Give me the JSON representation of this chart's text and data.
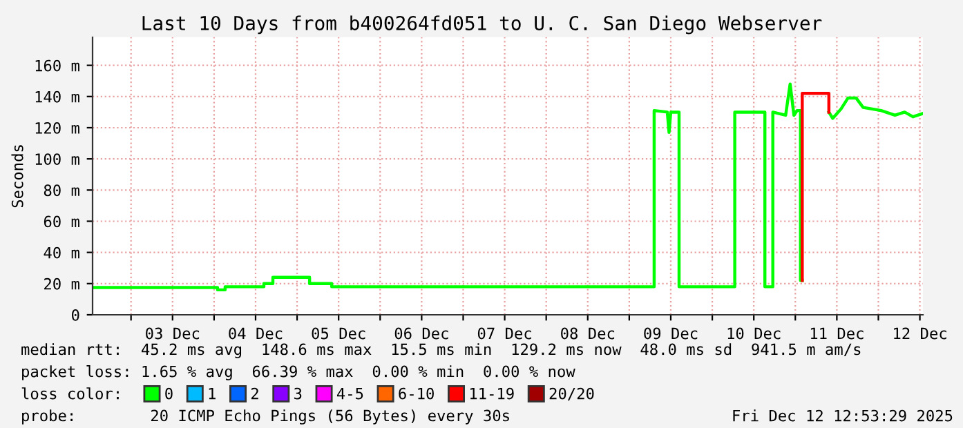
{
  "chart_data": {
    "type": "line",
    "title": "Last 10 Days from b400264fd051 to U. C. San Diego Webserver",
    "ylabel": "Seconds",
    "xlim": [
      "2025-12-02T12:53",
      "2025-12-12T12:53"
    ],
    "xticks": [
      {
        "value": "2025-12-03T00:00",
        "label": null
      },
      {
        "value": "2025-12-03T12:00",
        "label": "03 Dec"
      },
      {
        "value": "2025-12-04T00:00",
        "label": null
      },
      {
        "value": "2025-12-04T12:00",
        "label": "04 Dec"
      },
      {
        "value": "2025-12-05T00:00",
        "label": null
      },
      {
        "value": "2025-12-05T12:00",
        "label": "05 Dec"
      },
      {
        "value": "2025-12-06T00:00",
        "label": null
      },
      {
        "value": "2025-12-06T12:00",
        "label": "06 Dec"
      },
      {
        "value": "2025-12-07T00:00",
        "label": null
      },
      {
        "value": "2025-12-07T12:00",
        "label": "07 Dec"
      },
      {
        "value": "2025-12-08T00:00",
        "label": null
      },
      {
        "value": "2025-12-08T12:00",
        "label": "08 Dec"
      },
      {
        "value": "2025-12-09T00:00",
        "label": null
      },
      {
        "value": "2025-12-09T12:00",
        "label": "09 Dec"
      },
      {
        "value": "2025-12-10T00:00",
        "label": null
      },
      {
        "value": "2025-12-10T12:00",
        "label": "10 Dec"
      },
      {
        "value": "2025-12-11T00:00",
        "label": null
      },
      {
        "value": "2025-12-11T12:00",
        "label": "11 Dec"
      },
      {
        "value": "2025-12-12T00:00",
        "label": null
      },
      {
        "value": "2025-12-12T12:00",
        "label": "12 Dec"
      }
    ],
    "ylim": [
      0,
      178
    ],
    "yticks": [
      0,
      {
        "value": 20,
        "label": "20 m"
      },
      {
        "value": 40,
        "label": "40 m"
      },
      {
        "value": 60,
        "label": "60 m"
      },
      {
        "value": 80,
        "label": "80 m"
      },
      {
        "value": 100,
        "label": "100 m"
      },
      {
        "value": 120,
        "label": "120 m"
      },
      {
        "value": 140,
        "label": "140 m"
      },
      {
        "value": 160,
        "label": "160 m"
      }
    ],
    "grid": true,
    "legend": "bottom",
    "series": [
      {
        "name": "0",
        "color": "#00ff00",
        "x": [
          "2025-12-02T12:53",
          "2025-12-04T01:00",
          "2025-12-04T01:00",
          "2025-12-04T03:12",
          "2025-12-04T03:12",
          "2025-12-04T14:24",
          "2025-12-04T14:24",
          "2025-12-04T17:00",
          "2025-12-04T17:00",
          "2025-12-05T03:36",
          "2025-12-05T03:36",
          "2025-12-05T10:00",
          "2025-12-05T10:00",
          "2025-12-09T07:12",
          "2025-12-09T07:12",
          "2025-12-09T11:00",
          "2025-12-09T11:30",
          "2025-12-09T12:00",
          "2025-12-09T12:48",
          "2025-12-09T14:24",
          "2025-12-09T14:24",
          "2025-12-10T06:30",
          "2025-12-10T06:30",
          "2025-12-10T15:12",
          "2025-12-10T15:12",
          "2025-12-10T17:30",
          "2025-12-10T17:30",
          "2025-12-10T21:12",
          "2025-12-10T22:30",
          "2025-12-10T23:36",
          "2025-12-11T00:30",
          "2025-12-11T01:30",
          "2025-12-11T01:30",
          "2025-12-11T02:00"
        ],
        "values": [
          17.5,
          17.5,
          16,
          16,
          18,
          18,
          20,
          20,
          24,
          24,
          20,
          20,
          18,
          18,
          131,
          130,
          117,
          130,
          130,
          130,
          18,
          18,
          130,
          130,
          18,
          18,
          130,
          128,
          148,
          128,
          131,
          131,
          22,
          22
        ]
      },
      {
        "color": "#00ff00",
        "x": [
          "2025-12-11T09:42",
          "2025-12-11T10:48",
          "2025-12-11T13:12",
          "2025-12-11T15:12",
          "2025-12-11T17:36",
          "2025-12-11T19:36",
          "2025-12-12T00:48",
          "2025-12-12T04:48",
          "2025-12-12T07:36",
          "2025-12-12T10:00",
          "2025-12-12T12:40"
        ],
        "values": [
          130,
          126,
          132,
          139,
          139,
          133,
          131,
          128,
          130,
          127,
          129
        ]
      },
      {
        "name": "1",
        "color": "#00bbff",
        "values": [
          null
        ]
      },
      {
        "name": "2",
        "color": "#0066ff",
        "values": [
          null
        ]
      },
      {
        "name": "3",
        "color": "#8800ff",
        "values": [
          null
        ]
      },
      {
        "name": "4-5",
        "color": "#ff00ff",
        "values": [
          null
        ]
      },
      {
        "name": "6-10",
        "color": "#ff6600",
        "values": [
          null
        ]
      },
      {
        "name": "11-19",
        "color": "#ff0000",
        "x": [
          "2025-12-11T02:00",
          "2025-12-11T02:00",
          "2025-12-11T09:42",
          "2025-12-11T09:42"
        ],
        "values": [
          22,
          142,
          142,
          130
        ]
      },
      {
        "name": "20/20",
        "color": "#a10000",
        "values": [
          null
        ]
      }
    ],
    "annotations": [
      "median rtt:  45.2 ms avg  148.6 ms max  15.5 ms min  129.2 ms now  48.0 ms sd  941.5 m am/s",
      "packet loss: 1.65 % avg  66.39 % max  0.00 % min  0.00 % now",
      "loss color:",
      "probe:        20 ICMP Echo Pings (56 Bytes) every 30s",
      "Fri Dec 12 12:53:29 2025"
    ]
  }
}
